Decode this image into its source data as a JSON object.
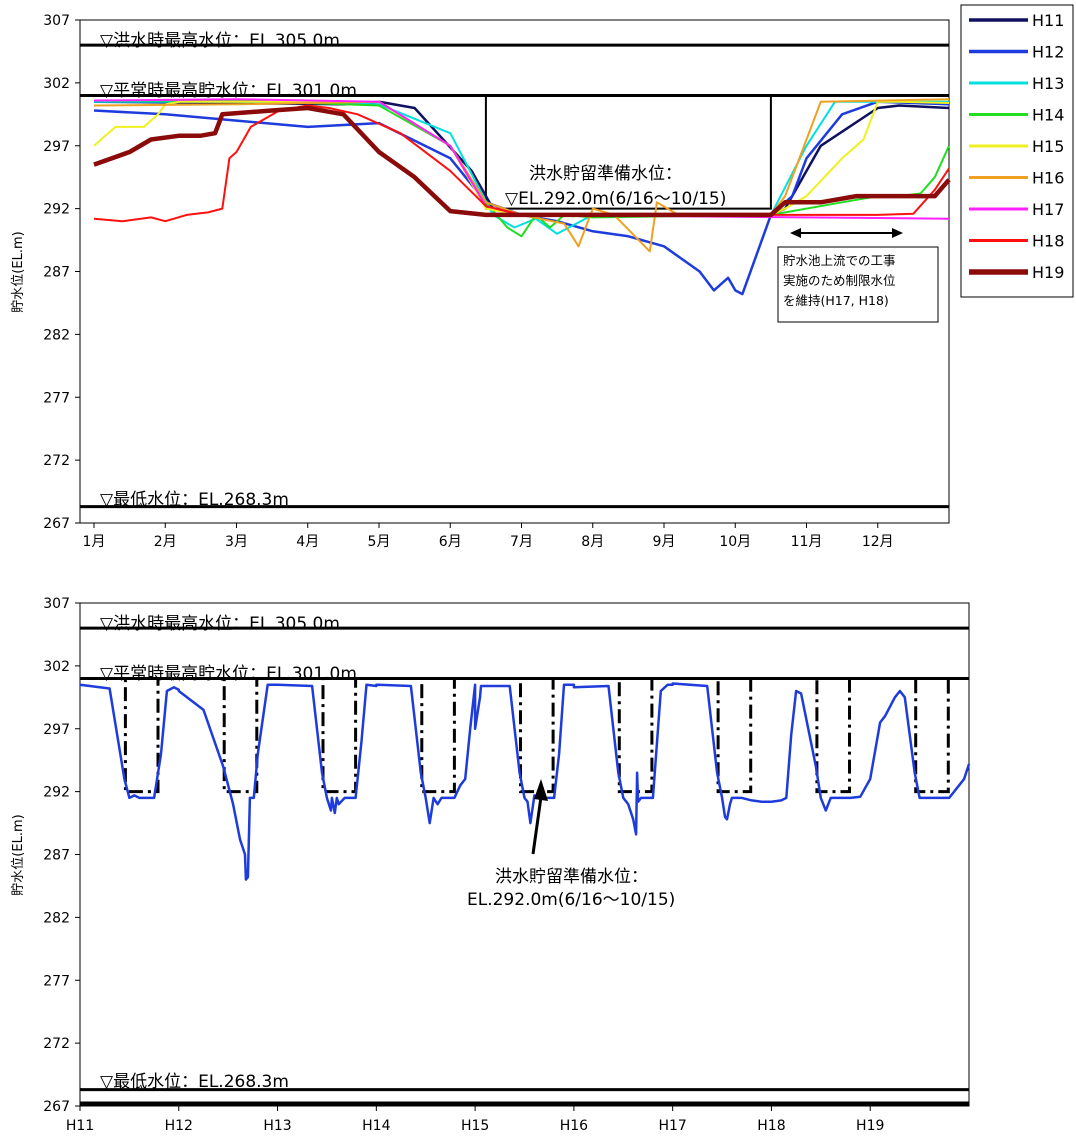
{
  "chart_data": [
    {
      "type": "line",
      "ylabel": "貯水位(EL.m)",
      "ylim": [
        267,
        307
      ],
      "yticks": [
        "307",
        "302",
        "297",
        "292",
        "287",
        "282",
        "277",
        "272",
        "267"
      ],
      "xticks": [
        "1月",
        "2月",
        "3月",
        "4月",
        "5月",
        "6月",
        "7月",
        "8月",
        "9月",
        "10月",
        "11月",
        "12月"
      ],
      "reference_lines": [
        {
          "label": "▽洪水時最高水位：EL.305.0m",
          "y": 305.0
        },
        {
          "label": "▽平常時最高貯水位：EL.301.0m",
          "y": 301.0
        },
        {
          "label": "▽最低水位：EL.268.3m",
          "y": 268.3
        }
      ],
      "annotations": {
        "flood_prep_line1": "洪水貯留準備水位：",
        "flood_prep_line2": "▽EL.292.0m(6/16～10/15)",
        "box_line1": "貯水池上流での工事",
        "box_line2": "実施のため制限水位",
        "box_line3": "を維持(H17, H18)"
      },
      "limit_rule": {
        "x": [
          0,
          5.5,
          5.5,
          5.52,
          9.48,
          9.5,
          9.5,
          12
        ],
        "y": [
          301,
          301,
          292,
          292,
          292,
          292,
          301,
          301
        ]
      },
      "series": [
        {
          "name": "H11",
          "color": "#101060",
          "width": 2.5,
          "x": [
            0,
            2,
            3.5,
            4,
            4.5,
            5.3,
            5.6,
            6,
            9.5,
            9.7,
            10.2,
            11,
            11.3,
            12
          ],
          "y": [
            300.5,
            300.4,
            300.3,
            300.5,
            300,
            295,
            292,
            291.5,
            291.5,
            292,
            297,
            300,
            300.2,
            300
          ]
        },
        {
          "name": "H12",
          "color": "#1e3cdc",
          "width": 2.5,
          "x": [
            0,
            1,
            2,
            3,
            4,
            5,
            5.5,
            6,
            6.5,
            7,
            7.5,
            8,
            8.5,
            8.7,
            8.9,
            9,
            9.1,
            9.5,
            9.8,
            10,
            10.5,
            11,
            12
          ],
          "y": [
            299.8,
            299.5,
            299,
            298.5,
            298.8,
            296,
            292.5,
            291.5,
            291,
            290.2,
            289.8,
            289,
            287,
            285.5,
            286.5,
            285.5,
            285.2,
            291.5,
            293,
            296,
            299.5,
            300.5,
            300.3
          ]
        },
        {
          "name": "H13",
          "color": "#00e0e0",
          "width": 2,
          "x": [
            0,
            2,
            4,
            5,
            5.6,
            5.9,
            6.2,
            6.5,
            7,
            9.5,
            10,
            10.4,
            12
          ],
          "y": [
            300.5,
            300.5,
            300.3,
            298,
            291.5,
            290.5,
            291.2,
            290,
            291.5,
            291.5,
            297,
            300.5,
            300.5
          ]
        },
        {
          "name": "H14",
          "color": "#22dd22",
          "width": 2,
          "x": [
            0,
            2,
            4,
            5,
            5.5,
            5.8,
            6,
            6.2,
            6.4,
            6.6,
            7,
            9.5,
            10.5,
            11,
            11.3,
            11.6,
            11.8,
            12
          ],
          "y": [
            300.6,
            300.6,
            300.2,
            297,
            292.5,
            290.5,
            289.8,
            291.5,
            290.5,
            291.5,
            291.3,
            291.5,
            292.5,
            293,
            293,
            293.2,
            294.5,
            297
          ]
        },
        {
          "name": "H15",
          "color": "#f0f020",
          "width": 2,
          "x": [
            0,
            0.3,
            0.7,
            0.9,
            1.0,
            1.2,
            2,
            4,
            5,
            5.5,
            6,
            9.5,
            9.7,
            10,
            10.5,
            10.8,
            11,
            11.3,
            12
          ],
          "y": [
            297,
            298.5,
            298.5,
            299.5,
            300.3,
            300.5,
            300.5,
            300.5,
            297,
            292,
            291.5,
            291.5,
            292,
            293,
            296,
            297.5,
            300.5,
            300.5,
            300.4
          ]
        },
        {
          "name": "H16",
          "color": "#f0a020",
          "width": 2,
          "x": [
            0,
            2,
            4,
            5,
            5.5,
            6,
            6.6,
            6.8,
            7,
            7.3,
            7.8,
            7.9,
            8.2,
            9.5,
            9.7,
            10.2,
            12
          ],
          "y": [
            300.2,
            300.3,
            300.5,
            297,
            292.5,
            291.5,
            290.8,
            289,
            292,
            291.5,
            288.6,
            292.5,
            291.5,
            291.5,
            293,
            300.5,
            300.7
          ]
        },
        {
          "name": "H17",
          "color": "#ff20ff",
          "width": 2,
          "x": [
            0,
            2,
            4,
            5,
            5.5,
            6,
            12
          ],
          "y": [
            300.6,
            300.7,
            300.5,
            297,
            292.2,
            291.5,
            291.2
          ]
        },
        {
          "name": "H18",
          "color": "#ff1010",
          "width": 2,
          "x": [
            0,
            0.4,
            0.8,
            1.0,
            1.3,
            1.6,
            1.8,
            1.9,
            2.0,
            2.2,
            2.6,
            3.0,
            3.3,
            3.7,
            4.3,
            5,
            5.5,
            6,
            9.5,
            10,
            11,
            11.5,
            11.8,
            12
          ],
          "y": [
            291.2,
            291,
            291.3,
            291,
            291.5,
            291.7,
            292,
            296,
            296.5,
            298.5,
            299.8,
            300.2,
            300,
            299.5,
            298,
            295,
            292.2,
            291.5,
            291.5,
            291.5,
            291.5,
            291.6,
            293.5,
            295.2
          ]
        },
        {
          "name": "H19",
          "color": "#8b0a0a",
          "width": 4.5,
          "x": [
            0,
            0.5,
            0.8,
            1.2,
            1.5,
            1.7,
            1.8,
            2.5,
            3.0,
            3.5,
            4.0,
            4.5,
            5,
            5.5,
            6,
            9.5,
            9.7,
            10.2,
            10.7,
            11,
            11.5,
            11.8,
            12
          ],
          "y": [
            295.5,
            296.5,
            297.5,
            297.8,
            297.8,
            298,
            299.5,
            299.8,
            300,
            299.5,
            296.5,
            294.5,
            291.8,
            291.5,
            291.5,
            291.5,
            292.5,
            292.5,
            293,
            293,
            293,
            293,
            294.3
          ]
        }
      ]
    },
    {
      "type": "line",
      "ylabel": "貯水位(EL.m)",
      "ylim": [
        267,
        307
      ],
      "yticks": [
        "307",
        "302",
        "297",
        "292",
        "287",
        "282",
        "277",
        "272",
        "267"
      ],
      "xticks": [
        "H11",
        "H12",
        "H13",
        "H14",
        "H15",
        "H16",
        "H17",
        "H18",
        "H19"
      ],
      "reference_lines": [
        {
          "label": "▽洪水時最高水位：EL.305.0m",
          "y": 305.0
        },
        {
          "label": "▽平常時最高貯水位：EL.301.0m",
          "y": 301.0
        },
        {
          "label": "▽最低水位：EL.268.3m",
          "y": 268.3
        }
      ],
      "annotations": {
        "arrow_line1": "洪水貯留準備水位：",
        "arrow_line2": "EL.292.0m(6/16～10/15)"
      },
      "limit_rule_yearly": {
        "x": [
          0,
          0.46,
          0.46,
          0.79,
          0.79,
          1
        ],
        "y": [
          301,
          301,
          292,
          292,
          301,
          301
        ]
      },
      "series_yearly": [
        {
          "name": "H11",
          "x": [
            0,
            0.3,
            0.45,
            0.5,
            0.55,
            0.6,
            0.75,
            0.82,
            0.88,
            0.95,
            1.0
          ],
          "y": [
            300.5,
            300.2,
            293,
            291.5,
            291.7,
            291.5,
            291.5,
            295,
            300,
            300.3,
            300.1
          ]
        },
        {
          "name": "H12",
          "x": [
            0,
            0.25,
            0.45,
            0.55,
            0.62,
            0.67,
            0.68,
            0.7,
            0.72,
            0.76,
            0.8,
            0.9,
            1.0
          ],
          "y": [
            300,
            298.5,
            294,
            291,
            288.2,
            287,
            285,
            285.2,
            291.5,
            291.5,
            295,
            300.5,
            300.5
          ]
        },
        {
          "name": "H13",
          "x": [
            0,
            0.35,
            0.45,
            0.5,
            0.54,
            0.55,
            0.58,
            0.6,
            0.62,
            0.68,
            0.79,
            0.85,
            0.9,
            1.0
          ],
          "y": [
            300.5,
            300.4,
            293.5,
            291.5,
            290.5,
            291.5,
            290.3,
            291.5,
            291,
            291.5,
            291.5,
            296,
            300.5,
            300.4
          ]
        },
        {
          "name": "H14",
          "x": [
            0,
            0.35,
            0.45,
            0.5,
            0.52,
            0.54,
            0.58,
            0.62,
            0.66,
            0.79,
            0.85,
            0.9,
            0.95,
            1.0
          ],
          "y": [
            300.5,
            300.4,
            293.5,
            291.5,
            290.5,
            289.5,
            291.5,
            291,
            291.5,
            291.5,
            292.5,
            293,
            297,
            300.5
          ]
        },
        {
          "name": "H15",
          "x": [
            0,
            0.05,
            0.06,
            0.35,
            0.45,
            0.5,
            0.53,
            0.56,
            0.6,
            0.62,
            0.7,
            0.8,
            0.85,
            0.9,
            1.0
          ],
          "y": [
            297,
            299.5,
            300.4,
            300.4,
            293.5,
            291.5,
            291.2,
            289.5,
            291.7,
            291.5,
            291.5,
            291.5,
            295,
            300.5,
            300.5
          ]
        },
        {
          "name": "H16",
          "x": [
            0,
            0.35,
            0.45,
            0.5,
            0.55,
            0.6,
            0.63,
            0.64,
            0.65,
            0.68,
            0.8,
            0.88,
            0.95,
            1.0
          ],
          "y": [
            300.3,
            300.4,
            293.5,
            291.5,
            291,
            289.8,
            288.6,
            293.5,
            291.2,
            291.5,
            291.5,
            300,
            300.5,
            300.5
          ]
        },
        {
          "name": "H17",
          "x": [
            0,
            0.35,
            0.45,
            0.5,
            0.53,
            0.55,
            0.58,
            0.6,
            0.7,
            0.8,
            0.9,
            1.0
          ],
          "y": [
            300.6,
            300.4,
            293.5,
            291.5,
            290,
            289.8,
            291,
            291.5,
            291.5,
            291.3,
            291.2,
            291.2
          ]
        },
        {
          "name": "H18",
          "x": [
            0,
            0.1,
            0.15,
            0.2,
            0.25,
            0.3,
            0.45,
            0.5,
            0.55,
            0.6,
            0.7,
            0.8,
            0.9,
            1.0
          ],
          "y": [
            291.2,
            291.3,
            291.5,
            296.5,
            300,
            299.8,
            294,
            291.5,
            290.5,
            291.5,
            291.5,
            291.5,
            291.6,
            293
          ]
        },
        {
          "name": "H19",
          "x": [
            0,
            0.1,
            0.15,
            0.25,
            0.3,
            0.35,
            0.45,
            0.5,
            0.6,
            0.8,
            0.9,
            0.95,
            1.0
          ],
          "y": [
            293,
            297.5,
            298,
            299.5,
            300,
            299.5,
            293.5,
            291.5,
            291.5,
            291.5,
            292.5,
            293,
            294.2
          ]
        }
      ]
    }
  ],
  "legend": {
    "items": [
      {
        "label": "H11",
        "color": "#101060",
        "width": 2.5
      },
      {
        "label": "H12",
        "color": "#1e3cdc",
        "width": 2.5
      },
      {
        "label": "H13",
        "color": "#00e0e0",
        "width": 2
      },
      {
        "label": "H14",
        "color": "#22dd22",
        "width": 2
      },
      {
        "label": "H15",
        "color": "#f0f020",
        "width": 2
      },
      {
        "label": "H16",
        "color": "#f0a020",
        "width": 2
      },
      {
        "label": "H17",
        "color": "#ff20ff",
        "width": 2
      },
      {
        "label": "H18",
        "color": "#ff1010",
        "width": 2
      },
      {
        "label": "H19",
        "color": "#8b0a0a",
        "width": 4.5
      }
    ]
  }
}
